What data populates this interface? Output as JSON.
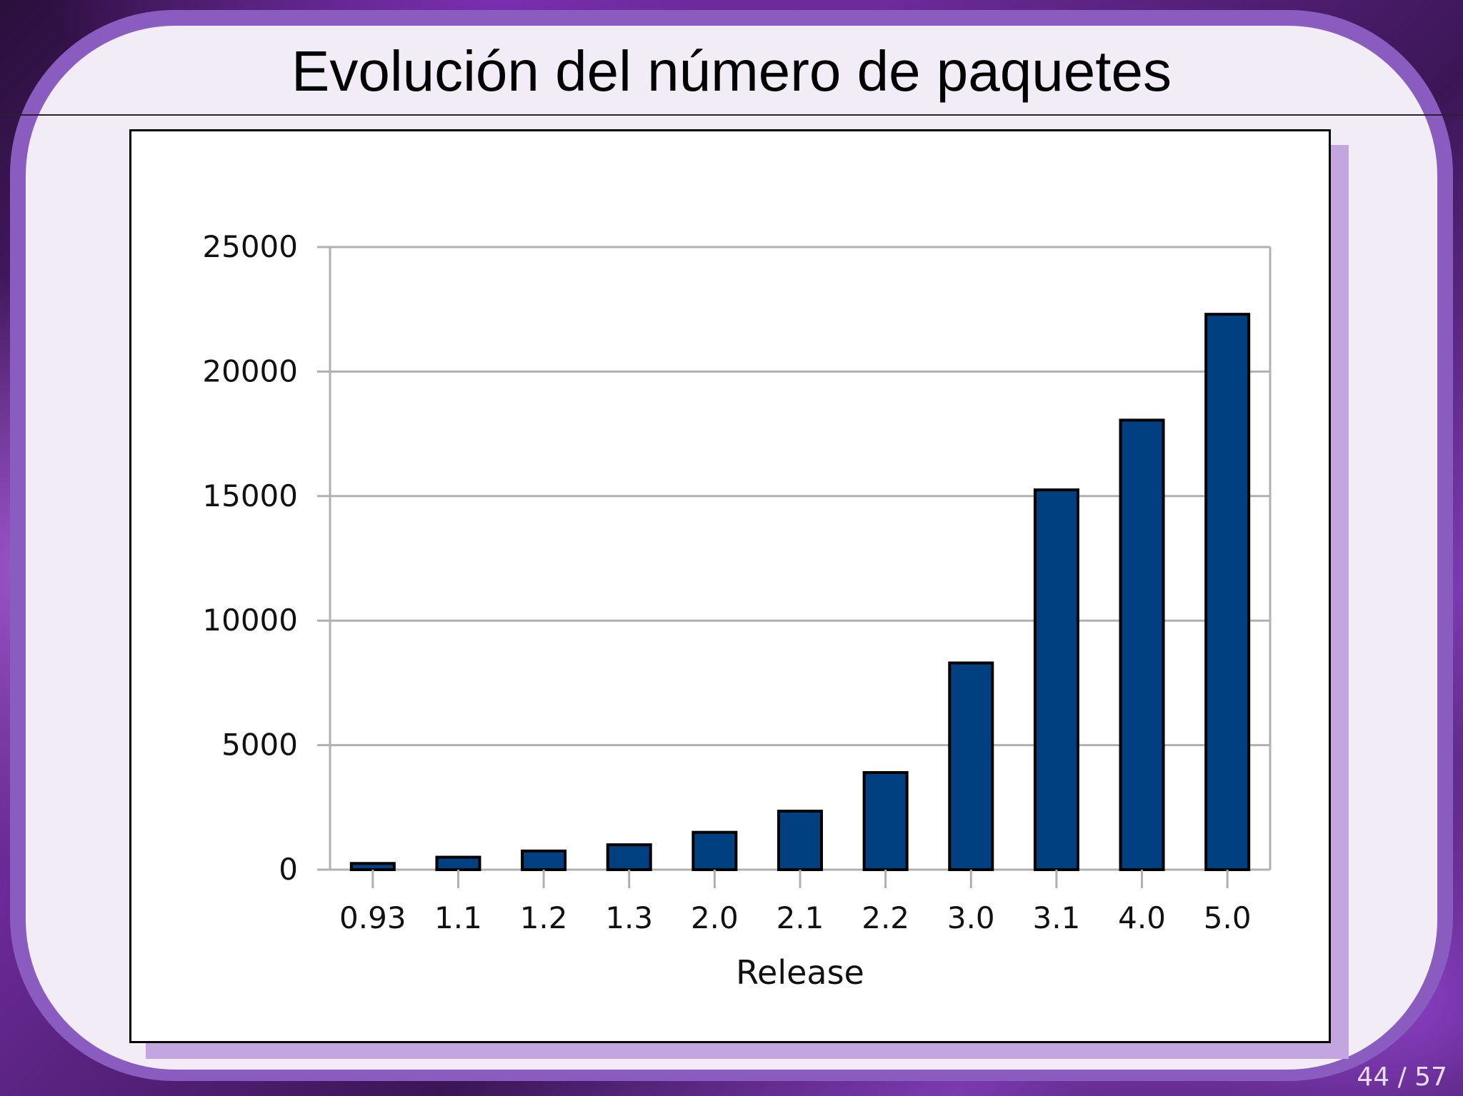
{
  "slide": {
    "title": "Evolución del número de paquetes",
    "page_number": "44 / 57"
  },
  "colors": {
    "bar_fill": "#004080",
    "bar_stroke": "#000000",
    "grid": "#b0b0b0",
    "slide_bg": "#f1ecf5",
    "accent_purple": "#8a5cc0"
  },
  "chart_data": {
    "type": "bar",
    "title": "",
    "xlabel": "Release",
    "ylabel": "",
    "categories": [
      "0.93",
      "1.1",
      "1.2",
      "1.3",
      "2.0",
      "2.1",
      "2.2",
      "3.0",
      "3.1",
      "4.0",
      "5.0"
    ],
    "values": [
      250,
      500,
      750,
      1000,
      1500,
      2350,
      3900,
      8300,
      15250,
      18050,
      22300
    ],
    "ylim": [
      0,
      25000
    ],
    "yticks": [
      0,
      5000,
      10000,
      15000,
      20000,
      25000
    ],
    "grid": true,
    "legend": "none"
  }
}
